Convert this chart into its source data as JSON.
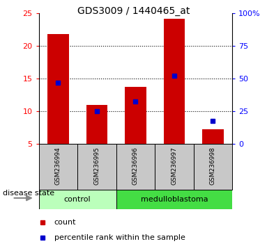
{
  "title": "GDS3009 / 1440465_at",
  "samples": [
    "GSM236994",
    "GSM236995",
    "GSM236996",
    "GSM236997",
    "GSM236998"
  ],
  "bar_bottom": 5,
  "count_values": [
    21.8,
    11.0,
    13.7,
    24.2,
    7.2
  ],
  "percentile_values": [
    14.4,
    10.05,
    11.5,
    15.5,
    8.5
  ],
  "ylim_left": [
    5,
    25
  ],
  "ylim_right": [
    0,
    100
  ],
  "yticks_left": [
    5,
    10,
    15,
    20,
    25
  ],
  "yticks_right": [
    0,
    25,
    50,
    75,
    100
  ],
  "ytick_labels_right": [
    "0",
    "25",
    "50",
    "75",
    "100%"
  ],
  "bar_color": "#cc0000",
  "percentile_color": "#0000cc",
  "control_label": "control",
  "medulloblastoma_label": "medulloblastoma",
  "control_color": "#bbffbb",
  "medulloblastoma_color": "#44dd44",
  "disease_state_label": "disease state",
  "legend_count": "count",
  "legend_percentile": "percentile rank within the sample",
  "bar_width": 0.55,
  "sample_label_fontsize": 6.5,
  "group_label_fontsize": 8,
  "title_fontsize": 10,
  "legend_fontsize": 8
}
